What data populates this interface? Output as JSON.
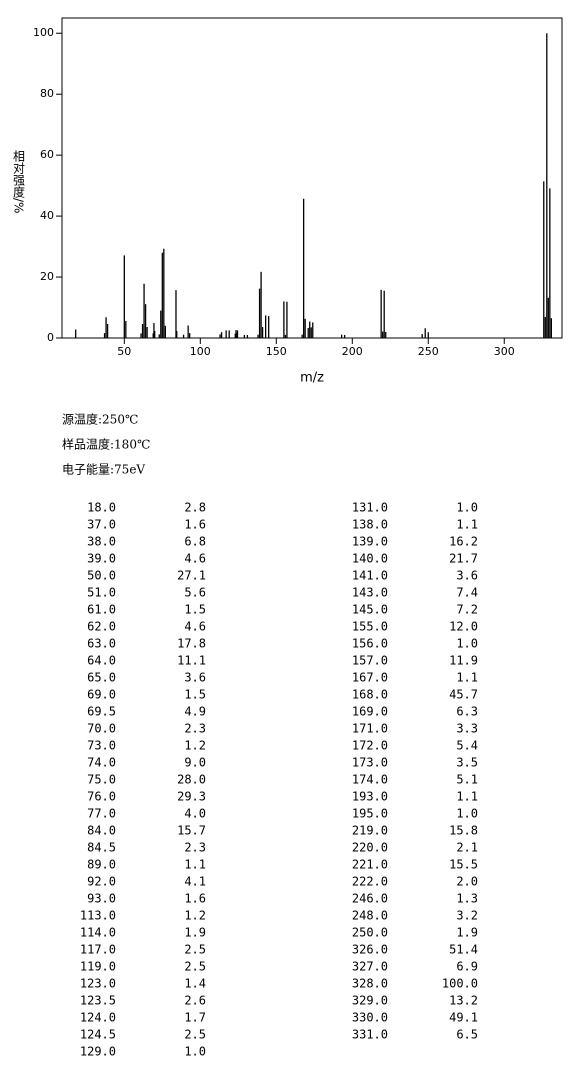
{
  "chart_data": {
    "type": "stem",
    "x_label": "m/z",
    "y_label": "相对强度/%",
    "xlim": [
      9,
      338
    ],
    "ylim": [
      0,
      105
    ],
    "xticks": [
      50,
      100,
      150,
      200,
      250,
      300
    ],
    "yticks": [
      0,
      20,
      40,
      60,
      80,
      100
    ],
    "color": "#000000",
    "x": [
      18,
      37,
      38,
      39,
      50,
      51,
      61,
      62,
      63,
      64,
      65,
      69,
      69.5,
      70,
      73,
      74,
      75,
      76,
      77,
      84,
      84.5,
      89,
      92,
      93,
      113,
      114,
      117,
      119,
      123,
      123.5,
      124,
      124.5,
      129,
      131,
      138,
      139,
      140,
      141,
      143,
      145,
      155,
      156,
      157,
      167,
      168,
      169,
      171,
      172,
      173,
      174,
      193,
      195,
      219,
      220,
      221,
      222,
      246,
      248,
      250,
      326,
      327,
      328,
      329,
      330,
      331
    ],
    "x_labels": [
      "18.0",
      "37.0",
      "38.0",
      "39.0",
      "50.0",
      "51.0",
      "61.0",
      "62.0",
      "63.0",
      "64.0",
      "65.0",
      "69.0",
      "69.5",
      "70.0",
      "73.0",
      "74.0",
      "75.0",
      "76.0",
      "77.0",
      "84.0",
      "84.5",
      "89.0",
      "92.0",
      "93.0",
      "113.0",
      "114.0",
      "117.0",
      "119.0",
      "123.0",
      "123.5",
      "124.0",
      "124.5",
      "129.0",
      "131.0",
      "138.0",
      "139.0",
      "140.0",
      "141.0",
      "143.0",
      "145.0",
      "155.0",
      "156.0",
      "157.0",
      "167.0",
      "168.0",
      "169.0",
      "171.0",
      "172.0",
      "173.0",
      "174.0",
      "193.0",
      "195.0",
      "219.0",
      "220.0",
      "221.0",
      "222.0",
      "246.0",
      "248.0",
      "250.0",
      "326.0",
      "327.0",
      "328.0",
      "329.0",
      "330.0",
      "331.0"
    ],
    "values": [
      2.8,
      1.6,
      6.8,
      4.6,
      27.1,
      5.6,
      1.5,
      4.6,
      17.8,
      11.1,
      3.6,
      1.5,
      4.9,
      2.3,
      1.2,
      9.0,
      28.0,
      29.3,
      4.0,
      15.7,
      2.3,
      1.1,
      4.1,
      1.6,
      1.2,
      1.9,
      2.5,
      2.5,
      1.4,
      2.6,
      1.7,
      2.5,
      1.0,
      1.0,
      1.1,
      16.2,
      21.7,
      3.6,
      7.4,
      7.2,
      12.0,
      1.0,
      11.9,
      1.1,
      45.7,
      6.3,
      3.3,
      5.4,
      3.5,
      5.1,
      1.1,
      1.0,
      15.8,
      2.1,
      15.5,
      2.0,
      1.3,
      3.2,
      1.9,
      51.4,
      6.9,
      100.0,
      13.2,
      49.1,
      6.5
    ],
    "value_labels": [
      "2.8",
      "1.6",
      "6.8",
      "4.6",
      "27.1",
      "5.6",
      "1.5",
      "4.6",
      "17.8",
      "11.1",
      "3.6",
      "1.5",
      "4.9",
      "2.3",
      "1.2",
      "9.0",
      "28.0",
      "29.3",
      "4.0",
      "15.7",
      "2.3",
      "1.1",
      "4.1",
      "1.6",
      "1.2",
      "1.9",
      "2.5",
      "2.5",
      "1.4",
      "2.6",
      "1.7",
      "2.5",
      "1.0",
      "1.0",
      "1.1",
      "16.2",
      "21.7",
      "3.6",
      "7.4",
      "7.2",
      "12.0",
      "1.0",
      "11.9",
      "1.1",
      "45.7",
      "6.3",
      "3.3",
      "5.4",
      "3.5",
      "5.1",
      "1.1",
      "1.0",
      "15.8",
      "2.1",
      "15.5",
      "2.0",
      "1.3",
      "3.2",
      "1.9",
      "51.4",
      "6.9",
      "100.0",
      "13.2",
      "49.1",
      "6.5"
    ]
  },
  "conditions": [
    "源温度:250℃",
    "样品温度:180℃",
    "电子能量:75eV"
  ]
}
